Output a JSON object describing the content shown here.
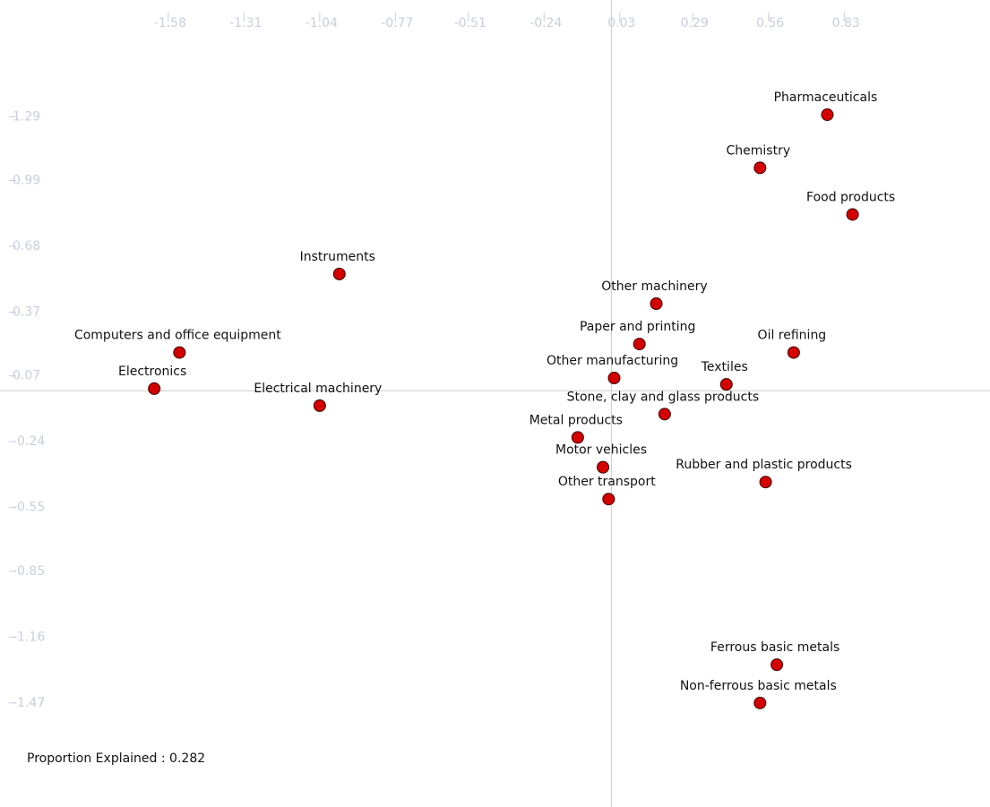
{
  "chart_data": {
    "type": "scatter",
    "annotation": "Proportion Explained : 0.282",
    "point_labels": [
      "Pharmaceuticals",
      "Chemistry",
      "Food products",
      "Instruments",
      "Other machinery",
      "Computers and office equipment",
      "Paper and printing",
      "Oil refining",
      "Other manufacturing",
      "Textiles",
      "Electronics",
      "Electrical machinery",
      "Stone, clay and glass products",
      "Metal products",
      "Motor vehicles",
      "Rubber and plastic products",
      "Other transport",
      "Ferrous basic metals",
      "Non-ferrous basic metals"
    ],
    "x": [
      0.77,
      0.53,
      0.86,
      -0.97,
      0.16,
      -1.54,
      0.1,
      0.65,
      0.01,
      0.41,
      -1.63,
      -1.04,
      0.19,
      -0.12,
      -0.03,
      0.55,
      -0.01,
      0.59,
      0.53
    ],
    "values": [
      1.3,
      1.05,
      0.83,
      0.55,
      0.41,
      0.18,
      0.22,
      0.18,
      0.06,
      0.03,
      0.01,
      -0.07,
      -0.11,
      -0.22,
      -0.36,
      -0.43,
      -0.51,
      -1.29,
      -1.47
    ],
    "color": "#d40000",
    "xlim": [
      -2.18,
      1.35
    ],
    "ylim": [
      -1.96,
      1.84
    ],
    "xticks": [
      -1.58,
      -1.31,
      -1.04,
      -0.77,
      -0.51,
      -0.24,
      0.03,
      0.29,
      0.56,
      0.83
    ],
    "yticks": [
      1.29,
      0.99,
      0.68,
      0.37,
      0.07,
      -0.24,
      -0.55,
      -0.85,
      -1.16,
      -1.47
    ]
  }
}
